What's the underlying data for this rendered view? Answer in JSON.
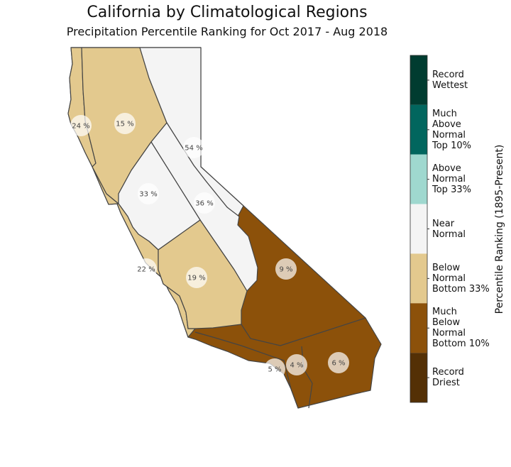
{
  "title": "California by Climatological Regions",
  "subtitle": "Precipitation Percentile Ranking for Oct 2017 - Aug 2018",
  "chart_data": {
    "type": "choropleth",
    "colorbar_label": "Percentile Ranking (1895-Present)",
    "legend_placement": "right",
    "categories": [
      {
        "label": "Record Wettest",
        "lines": [
          "Record",
          "Wettest"
        ],
        "color": "#003c30"
      },
      {
        "label": "Much Above Normal Top 10%",
        "lines": [
          "Much",
          "Above",
          "Normal",
          "Top 10%"
        ],
        "color": "#01665e"
      },
      {
        "label": "Above Normal Top 33%",
        "lines": [
          "Above",
          "Normal",
          "Top 33%"
        ],
        "color": "#9fd8cf"
      },
      {
        "label": "Near Normal",
        "lines": [
          "Near",
          "Normal"
        ],
        "color": "#f4f4f4"
      },
      {
        "label": "Below Normal Bottom 33%",
        "lines": [
          "Below",
          "Normal",
          "Bottom 33%"
        ],
        "color": "#e3c98e"
      },
      {
        "label": "Much Below Normal Bottom 10%",
        "lines": [
          "Much",
          "Below",
          "Normal",
          "Bottom 10%"
        ],
        "color": "#8c510a"
      },
      {
        "label": "Record Driest",
        "lines": [
          "Record",
          "Driest"
        ],
        "color": "#543005"
      }
    ],
    "regions": [
      {
        "label": "24 %",
        "value": 24,
        "category": "Below Normal Bottom 33%"
      },
      {
        "label": "15 %",
        "value": 15,
        "category": "Below Normal Bottom 33%"
      },
      {
        "label": "54 %",
        "value": 54,
        "category": "Near Normal"
      },
      {
        "label": "33 %",
        "value": 33,
        "category": "Near Normal"
      },
      {
        "label": "36 %",
        "value": 36,
        "category": "Near Normal"
      },
      {
        "label": "22 %",
        "value": 22,
        "category": "Below Normal Bottom 33%"
      },
      {
        "label": "19 %",
        "value": 19,
        "category": "Below Normal Bottom 33%"
      },
      {
        "label": "9 %",
        "value": 9,
        "category": "Much Below Normal Bottom 10%"
      },
      {
        "label": "5 %",
        "value": 5,
        "category": "Much Below Normal Bottom 10%"
      },
      {
        "label": "4 %",
        "value": 4,
        "category": "Much Below Normal Bottom 10%"
      },
      {
        "label": "6 %",
        "value": 6,
        "category": "Much Below Normal Bottom 10%"
      }
    ]
  }
}
